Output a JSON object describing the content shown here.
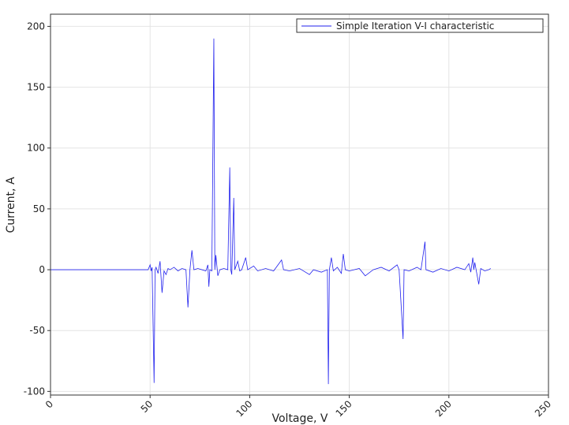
{
  "chart_data": {
    "type": "line",
    "x_label": "Voltage, V",
    "y_label": "Current, A",
    "x": [
      0,
      49,
      50,
      50.5,
      51,
      52,
      52.5,
      53,
      54,
      55,
      56,
      57,
      58,
      59,
      60,
      62,
      64,
      66,
      68,
      69,
      70,
      71,
      72,
      74,
      76,
      78,
      79,
      79.5,
      80,
      81,
      82,
      82.5,
      83,
      84,
      85,
      87,
      89,
      90,
      90.5,
      91,
      92,
      92.5,
      94,
      95,
      96,
      98,
      99,
      102,
      104,
      108,
      112,
      116,
      117,
      120,
      125,
      130,
      132,
      136,
      139,
      139.5,
      140,
      141,
      142,
      144,
      146,
      147,
      148,
      150,
      155,
      158,
      162,
      166,
      170,
      174,
      175,
      177,
      177.5,
      180,
      184,
      186,
      188,
      188.5,
      192,
      196,
      200,
      204,
      208,
      210,
      211,
      212,
      212.5,
      213,
      214,
      215,
      216,
      218,
      220,
      221
    ],
    "series": [
      {
        "name": "Simple Iteration V-I characteristic",
        "color": "#2222ee",
        "values": [
          0,
          0,
          4,
          -1,
          2,
          -93,
          0,
          2,
          -3,
          7,
          -19,
          -1,
          -4,
          1,
          0,
          2,
          -1,
          1,
          0,
          -31,
          0,
          16,
          0,
          1,
          0,
          -1,
          4,
          -14,
          0,
          -1,
          190,
          0,
          12,
          -5,
          0,
          1,
          0,
          84,
          0,
          -4,
          59,
          0,
          7,
          -1,
          0,
          10,
          0,
          3,
          -1,
          1,
          -1,
          8,
          0,
          -1,
          1,
          -4,
          0,
          -2,
          0,
          -94,
          0,
          10,
          -1,
          2,
          -3,
          13,
          0,
          -1,
          1,
          -5,
          0,
          2,
          -1,
          4,
          0,
          -57,
          0,
          -1,
          2,
          0,
          23,
          0,
          -2,
          1,
          -1,
          2,
          0,
          5,
          -2,
          10,
          0,
          6,
          -3,
          -12,
          1,
          -1,
          0,
          1
        ]
      }
    ],
    "xlim": [
      0,
      250
    ],
    "xticks": [
      0,
      50,
      100,
      150,
      200,
      250
    ],
    "ylim": [
      -103,
      210
    ],
    "yticks": [
      -100,
      -50,
      0,
      50,
      100,
      150,
      200
    ],
    "grid": true,
    "legend": "top-right"
  }
}
